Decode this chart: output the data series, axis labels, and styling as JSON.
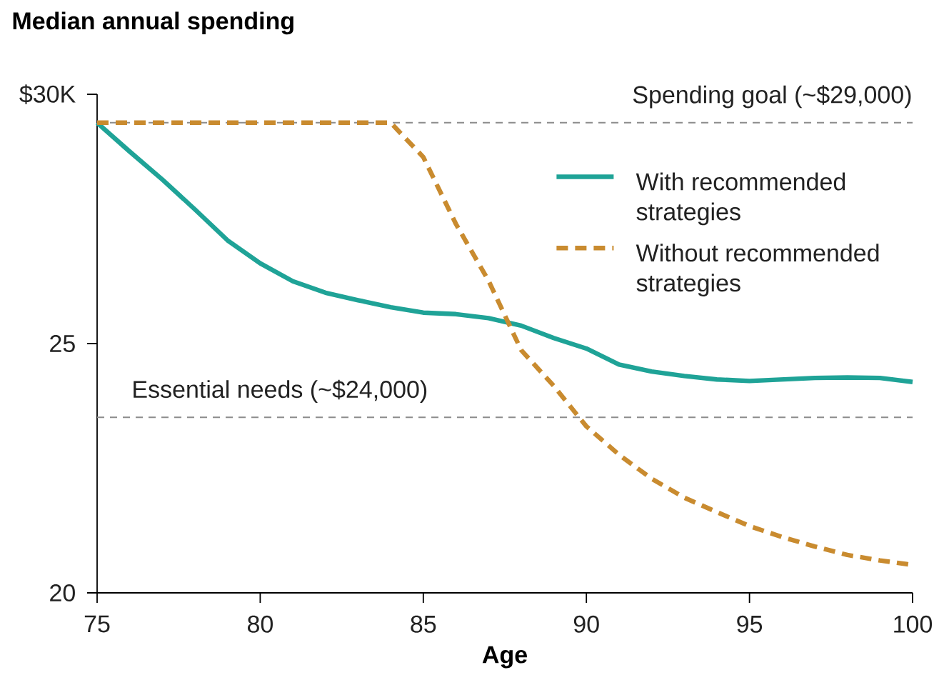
{
  "chart_data": {
    "type": "line",
    "title": "Median annual spending",
    "xlabel": "Age",
    "x": [
      75,
      76,
      77,
      78,
      79,
      80,
      81,
      82,
      83,
      84,
      85,
      86,
      87,
      88,
      89,
      90,
      91,
      92,
      93,
      94,
      95,
      96,
      97,
      98,
      99,
      100
    ],
    "series": [
      {
        "name": "With recommended strategies",
        "color": "#1fa397",
        "line_style": "solid",
        "values": [
          29.43,
          28.85,
          28.29,
          27.69,
          27.07,
          26.61,
          26.25,
          26.02,
          25.87,
          25.73,
          25.62,
          25.59,
          25.51,
          25.36,
          25.11,
          24.9,
          24.58,
          24.44,
          24.35,
          24.28,
          24.25,
          24.28,
          24.31,
          24.32,
          24.31,
          24.23
        ]
      },
      {
        "name": "Without recommended strategies",
        "color": "#c98b2f",
        "line_style": "dashed",
        "values": [
          29.43,
          29.43,
          29.43,
          29.43,
          29.43,
          29.43,
          29.43,
          29.43,
          29.43,
          29.43,
          28.74,
          27.4,
          26.26,
          24.87,
          24.15,
          23.34,
          22.77,
          22.29,
          21.91,
          21.62,
          21.34,
          21.12,
          20.93,
          20.76,
          20.65,
          20.56
        ]
      }
    ],
    "xlim": [
      75,
      100
    ],
    "ylim": [
      20,
      30
    ],
    "xticks": [
      75,
      80,
      85,
      90,
      95,
      100
    ],
    "yticks": [
      20,
      25,
      {
        "value": 30,
        "label": "$30K"
      }
    ],
    "ref_lines": [
      {
        "axis": "y",
        "value": 29.43,
        "label": "Spending goal (~$29,000)",
        "color": "#8c8c8c",
        "line_style": "dashed"
      },
      {
        "axis": "y",
        "value": 23.52,
        "label": "Essential needs (~$24,000)",
        "color": "#8c8c8c",
        "line_style": "dashed"
      }
    ],
    "grid": false,
    "legend": "top right",
    "marker": "none"
  }
}
